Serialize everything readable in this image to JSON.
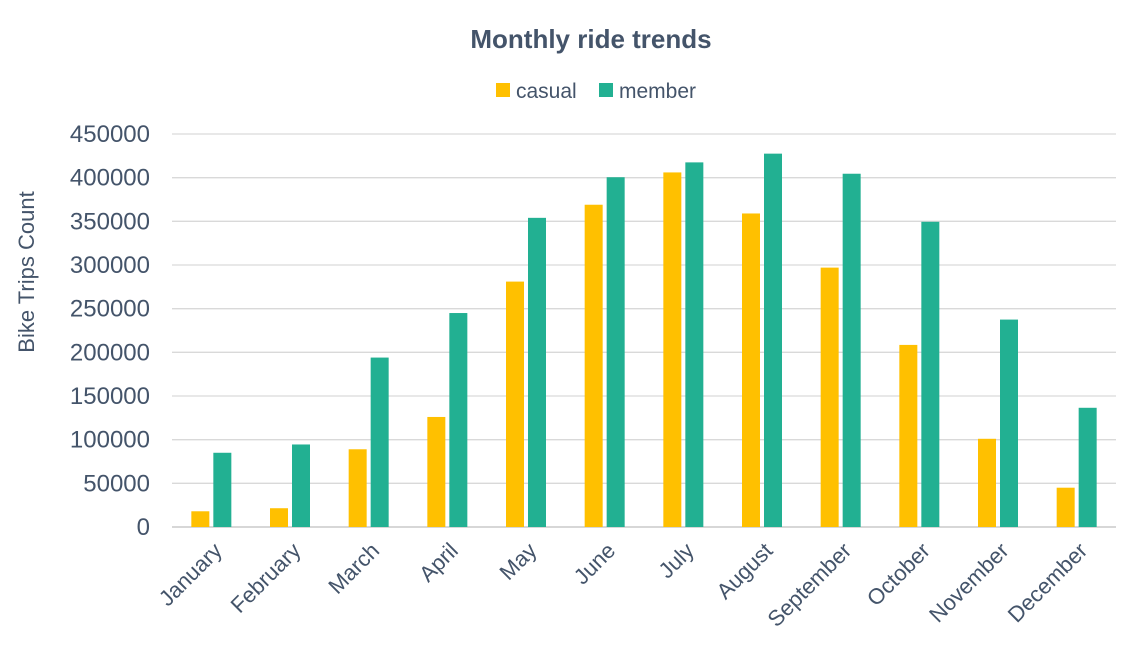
{
  "chart_data": {
    "type": "bar",
    "title": "Monthly ride trends",
    "xlabel": "",
    "ylabel": "Bike Trips Count",
    "categories": [
      "January",
      "February",
      "March",
      "April",
      "May",
      "June",
      "July",
      "August",
      "September",
      "October",
      "November",
      "December"
    ],
    "series": [
      {
        "name": "casual",
        "color": "#ffc000",
        "values": [
          18000,
          21500,
          89000,
          126000,
          281000,
          369000,
          406000,
          359000,
          297000,
          208500,
          101000,
          45000
        ]
      },
      {
        "name": "member",
        "color": "#22b092",
        "values": [
          85000,
          94500,
          194000,
          245000,
          354000,
          400500,
          417500,
          427500,
          404500,
          349500,
          237500,
          136500
        ]
      }
    ],
    "ylim": [
      0,
      450000
    ],
    "yticks": [
      "0",
      "50000",
      "100000",
      "150000",
      "200000",
      "250000",
      "300000",
      "350000",
      "400000",
      "450000"
    ],
    "grid": true,
    "legend_position": "top-center"
  }
}
